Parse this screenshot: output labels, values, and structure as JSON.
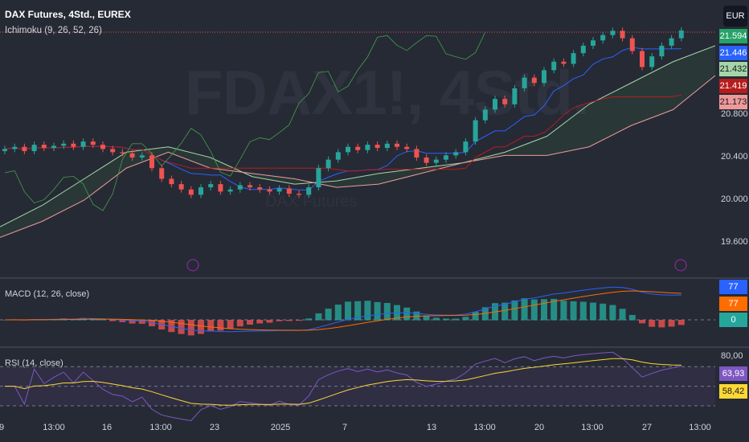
{
  "header": {
    "title": "DAX Futures, 4Std., EUREX",
    "indicator": "Ichimoku (9, 26, 52, 26)",
    "currency": "EUR"
  },
  "watermark": {
    "symbol": "FDAX1!, 4Std.",
    "name": "DAX Futures"
  },
  "price_tags": [
    {
      "value": "21.594",
      "bg": "#26a269",
      "fg": "#ffffff"
    },
    {
      "value": "21.446",
      "bg": "#2962ff",
      "fg": "#ffffff"
    },
    {
      "value": "21.432",
      "bg": "#a5d6a7",
      "fg": "#131722"
    },
    {
      "value": "21.419",
      "bg": "#b71c1c",
      "fg": "#ffffff"
    },
    {
      "value": "21.173",
      "bg": "#ef9a9a",
      "fg": "#131722"
    }
  ],
  "macd": {
    "label": "MACD (12, 26, close)",
    "tags": [
      {
        "value": "77",
        "bg": "#2962ff"
      },
      {
        "value": "77",
        "bg": "#ff6d00"
      },
      {
        "value": "0",
        "bg": "#26a69a"
      }
    ]
  },
  "rsi": {
    "label": "RSI (14, close)",
    "axis": "80,00",
    "tags": [
      {
        "value": "63,93",
        "bg": "#7e57c2",
        "fg": "#ffffff"
      },
      {
        "value": "58,42",
        "bg": "#fdd835",
        "fg": "#131722"
      }
    ]
  },
  "chart_data": {
    "type": "candlestick",
    "y_axis_ticks": [
      "20.800",
      "20.400",
      "20.000",
      "19.600"
    ],
    "x_axis_ticks": [
      "9",
      "13:00",
      "16",
      "13:00",
      "23",
      "2025",
      "7",
      "13",
      "13:00",
      "20",
      "13:00",
      "27",
      "13:00"
    ],
    "colors": {
      "up": "#26a69a",
      "down": "#ef5350",
      "tenkan": "#2962ff",
      "kijun": "#b71c1c",
      "chikou": "#43a047",
      "span_a": "#a5d6a7",
      "span_b": "#ef9a9a"
    },
    "closes": [
      20.48,
      20.5,
      20.46,
      20.52,
      20.49,
      20.51,
      20.53,
      20.5,
      20.55,
      20.52,
      20.48,
      20.45,
      20.44,
      20.4,
      20.42,
      20.3,
      20.2,
      20.15,
      20.1,
      20.05,
      20.12,
      20.15,
      20.08,
      20.1,
      20.14,
      20.12,
      20.1,
      20.08,
      20.11,
      20.06,
      20.05,
      20.12,
      20.3,
      20.38,
      20.45,
      20.5,
      20.47,
      20.52,
      20.49,
      20.53,
      20.5,
      20.48,
      20.4,
      20.35,
      20.38,
      20.42,
      20.45,
      20.55,
      20.75,
      20.85,
      20.95,
      20.9,
      21.05,
      21.15,
      21.1,
      21.22,
      21.3,
      21.28,
      21.38,
      21.45,
      21.5,
      21.55,
      21.59,
      21.52,
      21.4,
      21.25,
      21.35,
      21.45,
      21.52,
      21.594
    ],
    "span_a": [
      19.75,
      19.95,
      20.2,
      20.45,
      20.5,
      20.4,
      20.22,
      20.15,
      20.18,
      20.25,
      20.3,
      20.35,
      20.45,
      20.6,
      20.9,
      21.1,
      21.3,
      21.45
    ],
    "span_b": [
      19.65,
      19.8,
      20.0,
      20.3,
      20.45,
      20.3,
      20.25,
      20.2,
      20.12,
      20.15,
      20.25,
      20.35,
      20.42,
      20.42,
      20.5,
      20.7,
      20.85,
      21.17
    ]
  }
}
